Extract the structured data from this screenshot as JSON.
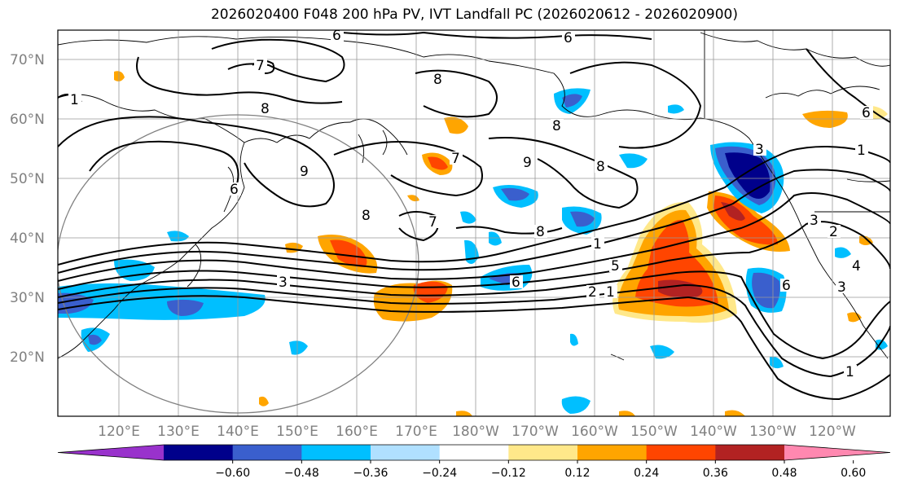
{
  "title": "2026020400 F048 200 hPa PV, IVT Landfall PC (2026020612 - 2026020900)",
  "lat_labels": [
    "70°N",
    "60°N",
    "50°N",
    "40°N",
    "30°N",
    "20°N"
  ],
  "lon_labels": [
    "120°E",
    "130°E",
    "140°E",
    "150°E",
    "160°E",
    "170°E",
    "180°W",
    "170°W",
    "160°W",
    "150°W",
    "140°W",
    "130°W",
    "120°W"
  ],
  "colorbar": {
    "ticks": [
      "−0.60",
      "−0.48",
      "−0.36",
      "−0.24",
      "−0.12",
      "0.12",
      "0.24",
      "0.36",
      "0.48",
      "0.60"
    ],
    "colors": [
      "#9932cc",
      "#00008b",
      "#3a5fcd",
      "#00bfff",
      "#b0e0ff",
      "#ffffff",
      "#ffe88a",
      "#ffa500",
      "#ff4500",
      "#b22222",
      "#ff88b0"
    ]
  },
  "contour_labels": [
    "6",
    "6",
    "8",
    "8",
    "9",
    "8",
    "9",
    "8",
    "7",
    "8",
    "7",
    "8",
    "1",
    "5",
    "2",
    "3",
    "6",
    "1",
    "1",
    "1",
    "6",
    "3",
    "2",
    "4",
    "3",
    "6",
    "1",
    "3",
    "7",
    "6"
  ]
}
